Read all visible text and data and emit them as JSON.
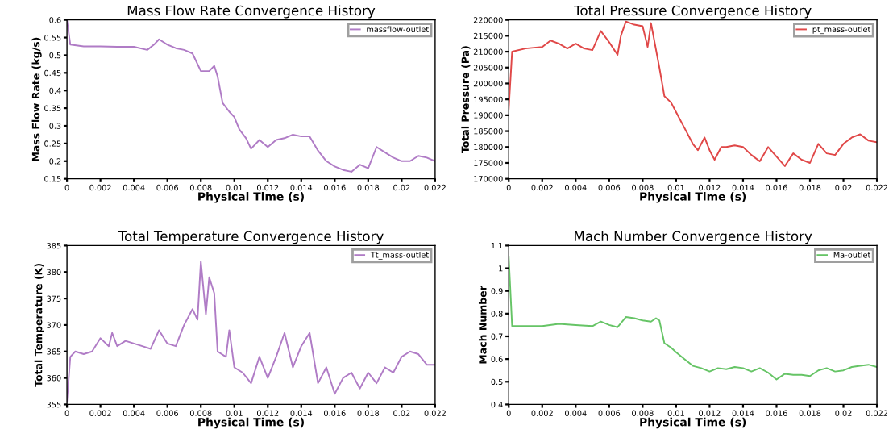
{
  "chart_data": [
    {
      "type": "line",
      "title": "Mass Flow Rate Convergence History",
      "xlabel": "Physical Time (s)",
      "ylabel": "Mass Flow Rate (kg/s)",
      "legend": "top right",
      "xlim": [
        0,
        0.022
      ],
      "xticks": [
        0,
        0.002,
        0.004,
        0.006,
        0.008,
        0.01,
        0.012,
        0.014,
        0.016,
        0.018,
        0.02,
        0.022
      ],
      "ylim": [
        0.15,
        0.6
      ],
      "yticks": [
        0.15,
        0.2,
        0.25,
        0.3,
        0.35,
        0.4,
        0.45,
        0.5,
        0.55,
        0.6
      ],
      "series": [
        {
          "name": "massflow-outlet",
          "color": "#b07cc6",
          "x": [
            0,
            0.0002,
            0.001,
            0.002,
            0.003,
            0.004,
            0.0048,
            0.0052,
            0.0055,
            0.006,
            0.0065,
            0.007,
            0.0075,
            0.008,
            0.0085,
            0.0088,
            0.009,
            0.0093,
            0.0097,
            0.01,
            0.0103,
            0.0107,
            0.011,
            0.0115,
            0.012,
            0.0125,
            0.013,
            0.0135,
            0.014,
            0.0145,
            0.015,
            0.0155,
            0.016,
            0.0165,
            0.017,
            0.0175,
            0.018,
            0.0185,
            0.019,
            0.0195,
            0.02,
            0.0205,
            0.021,
            0.0215,
            0.022
          ],
          "values": [
            0.6,
            0.53,
            0.525,
            0.525,
            0.524,
            0.524,
            0.515,
            0.53,
            0.545,
            0.53,
            0.52,
            0.515,
            0.505,
            0.455,
            0.455,
            0.47,
            0.44,
            0.365,
            0.34,
            0.325,
            0.29,
            0.265,
            0.235,
            0.26,
            0.24,
            0.26,
            0.265,
            0.275,
            0.27,
            0.27,
            0.23,
            0.2,
            0.185,
            0.175,
            0.17,
            0.19,
            0.18,
            0.24,
            0.225,
            0.21,
            0.2,
            0.2,
            0.215,
            0.21,
            0.2
          ]
        }
      ]
    },
    {
      "type": "line",
      "title": "Total Pressure Convergence History",
      "xlabel": "Physical Time (s)",
      "ylabel": "Total Pressure (Pa)",
      "legend": "top right",
      "xlim": [
        0,
        0.022
      ],
      "xticks": [
        0,
        0.002,
        0.004,
        0.006,
        0.008,
        0.01,
        0.012,
        0.014,
        0.016,
        0.018,
        0.02,
        0.022
      ],
      "ylim": [
        170000,
        220000
      ],
      "yticks": [
        170000,
        175000,
        180000,
        185000,
        190000,
        195000,
        200000,
        205000,
        210000,
        215000,
        220000
      ],
      "series": [
        {
          "name": "pt_mass-outlet",
          "color": "#e04848",
          "x": [
            0,
            0.0002,
            0.001,
            0.002,
            0.0025,
            0.003,
            0.0035,
            0.004,
            0.0045,
            0.005,
            0.0055,
            0.006,
            0.0065,
            0.0067,
            0.007,
            0.0075,
            0.008,
            0.0083,
            0.0085,
            0.009,
            0.0093,
            0.0097,
            0.01,
            0.0105,
            0.011,
            0.0113,
            0.0117,
            0.012,
            0.0123,
            0.0127,
            0.013,
            0.0135,
            0.014,
            0.0145,
            0.015,
            0.0155,
            0.016,
            0.0165,
            0.017,
            0.0175,
            0.018,
            0.0185,
            0.019,
            0.0195,
            0.02,
            0.0205,
            0.021,
            0.0215,
            0.022
          ],
          "values": [
            192000,
            210000,
            211000,
            211500,
            213500,
            212500,
            211000,
            212500,
            211000,
            210500,
            216500,
            213000,
            209000,
            215000,
            219500,
            218500,
            218000,
            211500,
            219000,
            205000,
            196000,
            194000,
            191000,
            186000,
            181000,
            179000,
            183000,
            179000,
            176000,
            180000,
            180000,
            180500,
            180000,
            177500,
            175500,
            180000,
            177000,
            174000,
            178000,
            176000,
            175000,
            181000,
            178000,
            177500,
            181000,
            183000,
            184000,
            182000,
            181500
          ]
        }
      ]
    },
    {
      "type": "line",
      "title": "Total Temperature Convergence History",
      "xlabel": "Physical Time (s)",
      "ylabel": "Total Temperature (K)",
      "legend": "top right",
      "xlim": [
        0,
        0.022
      ],
      "xticks": [
        0,
        0.002,
        0.004,
        0.006,
        0.008,
        0.01,
        0.012,
        0.014,
        0.016,
        0.018,
        0.02,
        0.022
      ],
      "ylim": [
        355,
        385
      ],
      "yticks": [
        355,
        360,
        365,
        370,
        375,
        380,
        385
      ],
      "series": [
        {
          "name": "Tt_mass-outlet",
          "color": "#b07cc6",
          "x": [
            0,
            0.0002,
            0.0005,
            0.001,
            0.0015,
            0.002,
            0.0025,
            0.0027,
            0.003,
            0.0035,
            0.004,
            0.0045,
            0.005,
            0.0055,
            0.006,
            0.0065,
            0.007,
            0.0075,
            0.0078,
            0.008,
            0.0083,
            0.0085,
            0.0088,
            0.009,
            0.0095,
            0.0097,
            0.01,
            0.0105,
            0.011,
            0.0115,
            0.012,
            0.0125,
            0.013,
            0.0135,
            0.014,
            0.0145,
            0.015,
            0.0155,
            0.016,
            0.0165,
            0.017,
            0.0175,
            0.018,
            0.0185,
            0.019,
            0.0195,
            0.02,
            0.0205,
            0.021,
            0.0215,
            0.022
          ],
          "values": [
            355.5,
            364,
            365,
            364.5,
            365,
            367.5,
            366,
            368.5,
            366,
            367,
            366.5,
            366,
            365.5,
            369,
            366.5,
            366,
            370,
            373,
            371,
            382,
            372,
            379,
            376,
            365,
            364,
            369,
            362,
            361,
            359,
            364,
            360,
            364,
            368.5,
            362,
            366,
            368.5,
            359,
            362,
            357,
            360,
            361,
            358,
            361,
            359,
            362,
            361,
            364,
            365,
            364.5,
            362.5,
            362.5
          ]
        }
      ]
    },
    {
      "type": "line",
      "title": "Mach Number Convergence History",
      "xlabel": "Physical Time (s)",
      "ylabel": "Mach Number",
      "legend": "top right",
      "xlim": [
        0,
        0.022
      ],
      "xticks": [
        0,
        0.002,
        0.004,
        0.006,
        0.008,
        0.01,
        0.012,
        0.014,
        0.016,
        0.018,
        0.02,
        0.022
      ],
      "ylim": [
        0.4,
        1.1
      ],
      "yticks": [
        0.4,
        0.5,
        0.6,
        0.7,
        0.8,
        0.9,
        1,
        1.1
      ],
      "series": [
        {
          "name": "Ma-outlet",
          "color": "#66c466",
          "x": [
            0,
            0.0002,
            0.001,
            0.002,
            0.003,
            0.004,
            0.005,
            0.0055,
            0.006,
            0.0065,
            0.007,
            0.0075,
            0.008,
            0.0085,
            0.0088,
            0.009,
            0.0093,
            0.0097,
            0.01,
            0.0105,
            0.011,
            0.0115,
            0.012,
            0.0125,
            0.013,
            0.0135,
            0.014,
            0.0145,
            0.015,
            0.0155,
            0.016,
            0.0165,
            0.017,
            0.0175,
            0.018,
            0.0185,
            0.019,
            0.0195,
            0.02,
            0.0205,
            0.021,
            0.0215,
            0.022
          ],
          "values": [
            1.05,
            0.745,
            0.745,
            0.745,
            0.755,
            0.75,
            0.745,
            0.765,
            0.75,
            0.74,
            0.785,
            0.78,
            0.77,
            0.765,
            0.78,
            0.77,
            0.67,
            0.65,
            0.63,
            0.6,
            0.57,
            0.56,
            0.545,
            0.56,
            0.555,
            0.565,
            0.56,
            0.545,
            0.56,
            0.54,
            0.51,
            0.535,
            0.53,
            0.53,
            0.525,
            0.55,
            0.56,
            0.545,
            0.55,
            0.565,
            0.57,
            0.575,
            0.565
          ]
        }
      ]
    }
  ]
}
